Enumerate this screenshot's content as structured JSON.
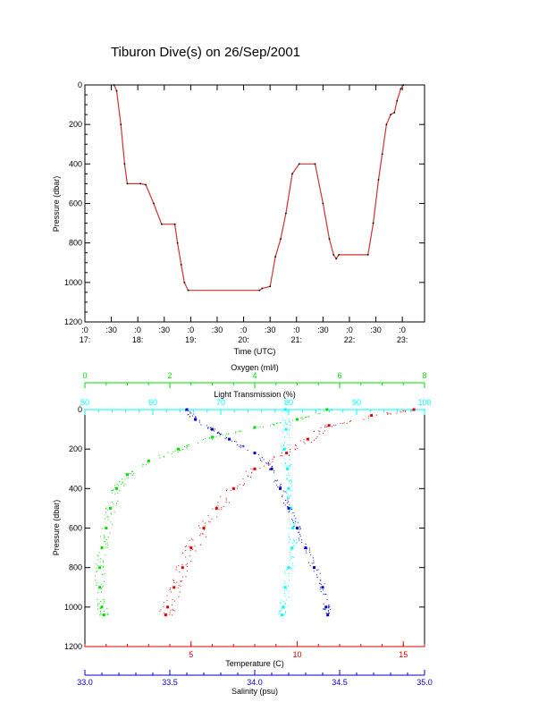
{
  "title": "Tiburon Dive(s) on 26/Sep/2001",
  "colors": {
    "axis": "#000000",
    "depth_trace": "#cc3333",
    "oxygen": "#00dd00",
    "light": "#00ffff",
    "temperature": "#dd0000",
    "salinity": "#0000cc"
  },
  "chart_data": [
    {
      "type": "line",
      "title": "Tiburon Dive(s) on 26/Sep/2001",
      "xlabel": "Time (UTC)",
      "ylabel": "Pressure (dbar)",
      "ylim": [
        1200,
        0
      ],
      "y_ticks": [
        0,
        200,
        400,
        600,
        800,
        1000,
        1200
      ],
      "x_range_hours": [
        17.0,
        23.42
      ],
      "x_ticks": [
        {
          "t": 17.0,
          "top": ":0",
          "bottom": "17:"
        },
        {
          "t": 17.5,
          "top": ":30",
          "bottom": ""
        },
        {
          "t": 18.0,
          "top": ":0",
          "bottom": "18:"
        },
        {
          "t": 18.5,
          "top": ":30",
          "bottom": ""
        },
        {
          "t": 19.0,
          "top": ":0",
          "bottom": "19:"
        },
        {
          "t": 19.5,
          "top": ":30",
          "bottom": ""
        },
        {
          "t": 20.0,
          "top": ":0",
          "bottom": "20:"
        },
        {
          "t": 20.5,
          "top": ":30",
          "bottom": ""
        },
        {
          "t": 21.0,
          "top": ":0",
          "bottom": "21:"
        },
        {
          "t": 21.5,
          "top": ":30",
          "bottom": ""
        },
        {
          "t": 22.0,
          "top": ":0",
          "bottom": "22:"
        },
        {
          "t": 22.5,
          "top": ":30",
          "bottom": ""
        },
        {
          "t": 23.0,
          "top": ":0",
          "bottom": "23:"
        }
      ],
      "series": [
        {
          "points": [
            [
              17.55,
              0
            ],
            [
              17.6,
              30
            ],
            [
              17.68,
              200
            ],
            [
              17.75,
              400
            ],
            [
              17.8,
              500
            ],
            [
              18.05,
              500
            ],
            [
              18.15,
              505
            ],
            [
              18.3,
              600
            ],
            [
              18.45,
              705
            ],
            [
              18.7,
              705
            ],
            [
              18.75,
              800
            ],
            [
              18.82,
              910
            ],
            [
              18.88,
              1000
            ],
            [
              18.95,
              1040
            ],
            [
              20.3,
              1040
            ],
            [
              20.35,
              1030
            ],
            [
              20.5,
              1020
            ],
            [
              20.6,
              870
            ],
            [
              20.7,
              780
            ],
            [
              20.8,
              650
            ],
            [
              20.92,
              450
            ],
            [
              21.05,
              400
            ],
            [
              21.35,
              400
            ],
            [
              21.5,
              600
            ],
            [
              21.62,
              780
            ],
            [
              21.7,
              860
            ],
            [
              21.75,
              880
            ],
            [
              21.8,
              860
            ],
            [
              22.35,
              860
            ],
            [
              22.45,
              700
            ],
            [
              22.55,
              480
            ],
            [
              22.62,
              350
            ],
            [
              22.7,
              200
            ],
            [
              22.78,
              150
            ],
            [
              22.85,
              140
            ],
            [
              22.9,
              80
            ],
            [
              22.97,
              20
            ],
            [
              23.02,
              0
            ]
          ]
        }
      ]
    },
    {
      "type": "scatter",
      "ylabel": "Pressure (dbar)",
      "ylim": [
        1200,
        0
      ],
      "y_ticks": [
        0,
        200,
        400,
        600,
        800,
        1000,
        1200
      ],
      "axes": {
        "oxygen": {
          "label": "Oxygen (ml/l)",
          "range": [
            0,
            8
          ],
          "ticks": [
            0,
            2,
            4,
            6,
            8
          ],
          "position": "top"
        },
        "light": {
          "label": "Light Transmission (%)",
          "range": [
            50,
            100
          ],
          "ticks": [
            50,
            60,
            70,
            80,
            90,
            100
          ],
          "position": "top"
        },
        "temperature": {
          "label": "Temperature (C)",
          "range": [
            0,
            16
          ],
          "ticks": [
            5,
            10,
            15
          ],
          "position": "bottom"
        },
        "salinity": {
          "label": "Salinity (psu)",
          "range": [
            33.0,
            35.0
          ],
          "ticks": [
            "33.0",
            "33.5",
            "34.0",
            "34.5",
            "35.0"
          ],
          "position": "bottom"
        }
      },
      "series": [
        {
          "axis": "oxygen",
          "points": [
            [
              5.7,
              0
            ],
            [
              5.0,
              50
            ],
            [
              4.0,
              90
            ],
            [
              3.0,
              140
            ],
            [
              2.2,
              200
            ],
            [
              1.5,
              260
            ],
            [
              1.0,
              330
            ],
            [
              0.75,
              400
            ],
            [
              0.6,
              500
            ],
            [
              0.5,
              600
            ],
            [
              0.4,
              700
            ],
            [
              0.35,
              800
            ],
            [
              0.35,
              900
            ],
            [
              0.4,
              1000
            ],
            [
              0.45,
              1040
            ]
          ]
        },
        {
          "axis": "light",
          "points": [
            [
              79.5,
              0
            ],
            [
              79.6,
              100
            ],
            [
              79.4,
              200
            ],
            [
              79.8,
              300
            ],
            [
              80.0,
              400
            ],
            [
              80.3,
              500
            ],
            [
              80.6,
              600
            ],
            [
              80.5,
              700
            ],
            [
              80.0,
              800
            ],
            [
              79.5,
              900
            ],
            [
              79.2,
              1000
            ],
            [
              79.0,
              1040
            ]
          ]
        },
        {
          "axis": "temperature",
          "points": [
            [
              15.5,
              0
            ],
            [
              13.5,
              30
            ],
            [
              11.5,
              80
            ],
            [
              10.5,
              150
            ],
            [
              9.5,
              220
            ],
            [
              8.0,
              300
            ],
            [
              7.0,
              400
            ],
            [
              6.2,
              500
            ],
            [
              5.6,
              600
            ],
            [
              5.0,
              700
            ],
            [
              4.6,
              800
            ],
            [
              4.2,
              900
            ],
            [
              3.9,
              1000
            ],
            [
              3.8,
              1040
            ]
          ]
        },
        {
          "axis": "salinity",
          "points": [
            [
              33.6,
              0
            ],
            [
              33.65,
              50
            ],
            [
              33.75,
              100
            ],
            [
              33.85,
              150
            ],
            [
              34.0,
              220
            ],
            [
              34.1,
              300
            ],
            [
              34.15,
              400
            ],
            [
              34.2,
              500
            ],
            [
              34.25,
              600
            ],
            [
              34.3,
              700
            ],
            [
              34.35,
              800
            ],
            [
              34.4,
              900
            ],
            [
              34.42,
              1000
            ],
            [
              34.43,
              1040
            ]
          ]
        }
      ]
    }
  ]
}
